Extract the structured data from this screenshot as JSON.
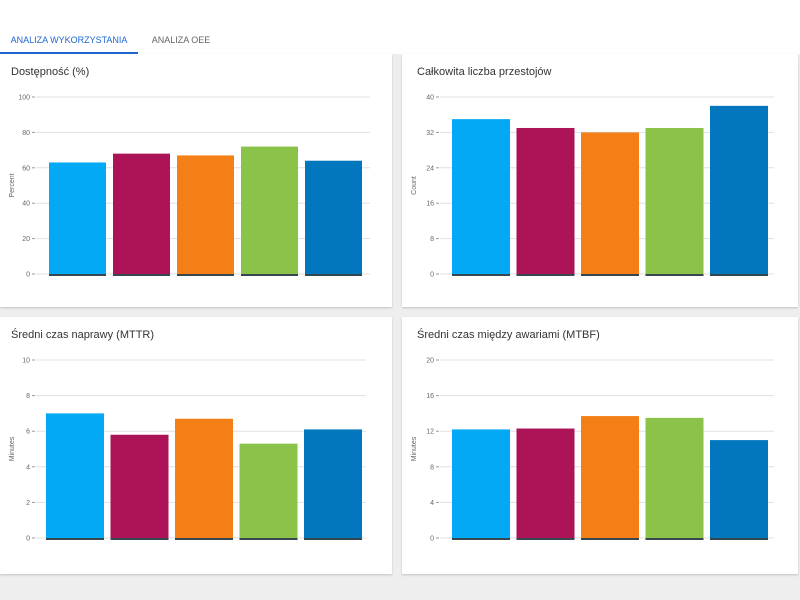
{
  "tabs": [
    {
      "label": "ANALIZA WYKORZYSTANIA",
      "active": true
    },
    {
      "label": "ANALIZA OEE",
      "active": false
    }
  ],
  "colors": {
    "accent": "#1f66d1",
    "bars": [
      "#03a9f4",
      "#ad1457",
      "#f57f17",
      "#8bc34a",
      "#0277bd"
    ]
  },
  "chart_data": [
    {
      "type": "bar",
      "title": "Dostępność (%)",
      "ylabel": "Percent",
      "ylim": [
        0,
        100
      ],
      "yticks": [
        0,
        20,
        40,
        60,
        80,
        100
      ],
      "values": [
        63,
        68,
        67,
        72,
        64
      ],
      "grid": true
    },
    {
      "type": "bar",
      "title": "Całkowita liczba przestojów",
      "ylabel": "Count",
      "ylim": [
        0,
        40
      ],
      "yticks": [
        0,
        8,
        16,
        24,
        32,
        40
      ],
      "values": [
        35,
        33,
        32,
        33,
        38
      ],
      "grid": true
    },
    {
      "type": "bar",
      "title": "Średni czas naprawy (MTTR)",
      "ylabel": "Minutes",
      "ylim": [
        0,
        10
      ],
      "yticks": [
        0,
        2,
        4,
        6,
        8,
        10
      ],
      "values": [
        7.0,
        5.8,
        6.7,
        5.3,
        6.1
      ],
      "grid": true
    },
    {
      "type": "bar",
      "title": "Średni czas między awariami (MTBF)",
      "ylabel": "Minutes",
      "ylim": [
        0,
        20
      ],
      "yticks": [
        0,
        4,
        8,
        12,
        16,
        20
      ],
      "values": [
        12.2,
        12.3,
        13.7,
        13.5,
        11.0
      ],
      "grid": true
    }
  ]
}
